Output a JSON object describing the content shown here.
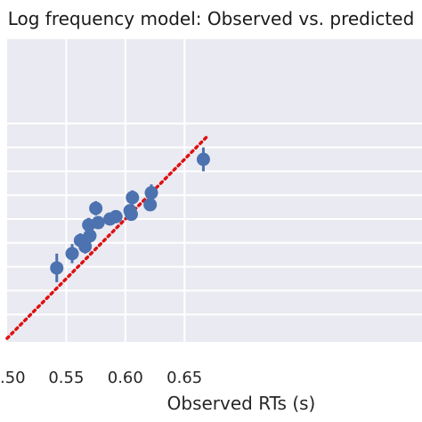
{
  "chart_data": {
    "type": "scatter",
    "title": "Log frequency model: Observed vs. predicted",
    "xlabel": "Observed RTs (s)",
    "ylabel": "",
    "xlim": [
      0.5,
      0.67
    ],
    "ylim": [
      0.5,
      0.69
    ],
    "xticks": [
      0.5,
      0.55,
      0.6,
      0.65
    ],
    "xtick_labels": [
      ".50",
      "0.55",
      "0.60",
      "0.65"
    ],
    "grid": true,
    "reference_line": {
      "style": "dotted",
      "color": "#dd1111",
      "x": [
        0.5,
        0.67
      ],
      "y": [
        0.5,
        0.67
      ]
    },
    "series": [
      {
        "color": "#4c72b0",
        "points": [
          {
            "x": 0.542,
            "y": 0.559,
            "err": 0.012
          },
          {
            "x": 0.555,
            "y": 0.571,
            "err": 0.008
          },
          {
            "x": 0.562,
            "y": 0.582,
            "err": 0.006
          },
          {
            "x": 0.566,
            "y": 0.577,
            "err": 0.006
          },
          {
            "x": 0.569,
            "y": 0.595,
            "err": 0.006
          },
          {
            "x": 0.57,
            "y": 0.586,
            "err": 0.006
          },
          {
            "x": 0.575,
            "y": 0.609,
            "err": 0.006
          },
          {
            "x": 0.577,
            "y": 0.597,
            "err": 0.005
          },
          {
            "x": 0.587,
            "y": 0.6,
            "err": 0.005
          },
          {
            "x": 0.592,
            "y": 0.602,
            "err": 0.005
          },
          {
            "x": 0.604,
            "y": 0.607,
            "err": 0.005
          },
          {
            "x": 0.605,
            "y": 0.604,
            "err": 0.005
          },
          {
            "x": 0.606,
            "y": 0.618,
            "err": 0.006
          },
          {
            "x": 0.621,
            "y": 0.612,
            "err": 0.005
          },
          {
            "x": 0.622,
            "y": 0.622,
            "err": 0.007
          },
          {
            "x": 0.666,
            "y": 0.65,
            "err": 0.01
          }
        ]
      }
    ]
  }
}
